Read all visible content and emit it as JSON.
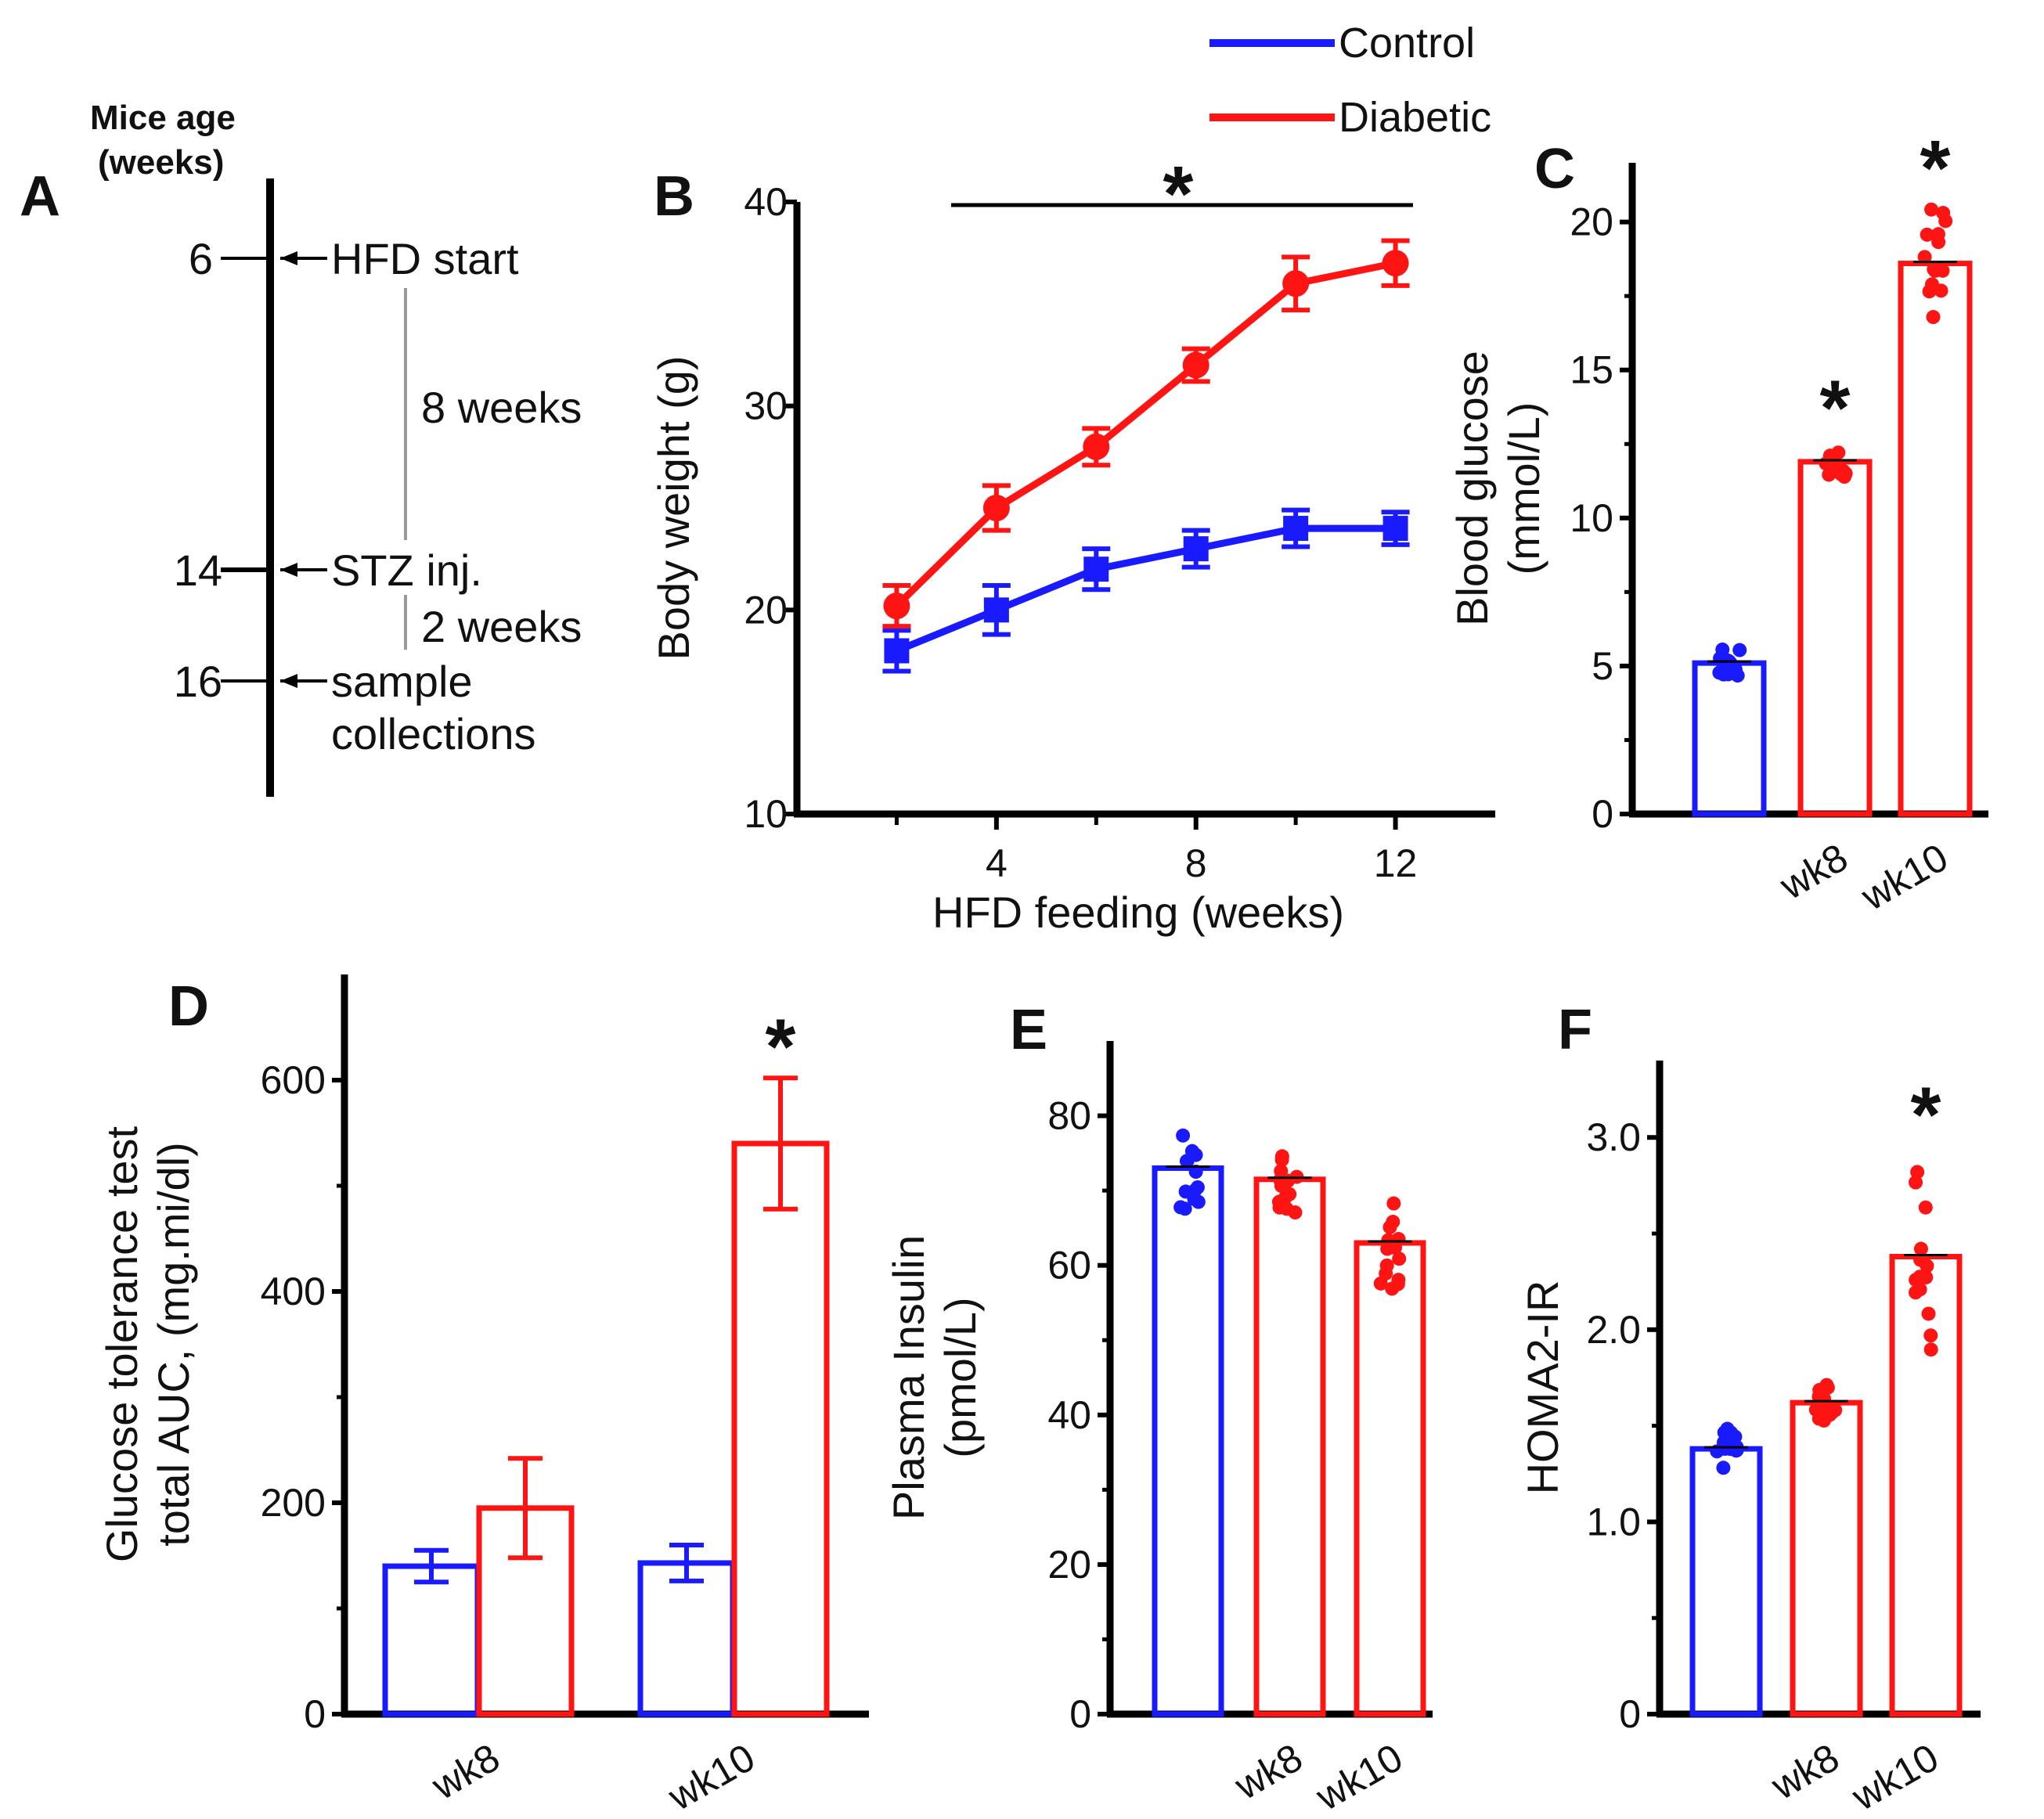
{
  "colors": {
    "control": "#1a1aff",
    "diabetic": "#ff1414",
    "axis": "#000000"
  },
  "legend": {
    "control": "Control",
    "diabetic": "Diabetic"
  },
  "timeline": {
    "label": "A",
    "header_line1": "Mice age",
    "header_line2": "(weeks)",
    "ages": [
      "6",
      "14",
      "16"
    ],
    "events": [
      "HFD start",
      "STZ  inj.",
      "sample",
      "collections"
    ],
    "durations": [
      "8 weeks",
      "2 weeks"
    ]
  },
  "chart_data": [
    {
      "panel": "B",
      "type": "line",
      "xlabel": "HFD feeding (weeks)",
      "ylabel": "Body weight (g)",
      "xlim": [
        0,
        14
      ],
      "ylim": [
        10,
        40
      ],
      "xticks": [
        "4",
        "8",
        "12"
      ],
      "yticks": [
        "10",
        "20",
        "30",
        "40"
      ],
      "x": [
        2,
        4,
        6,
        8,
        10,
        12
      ],
      "series": [
        {
          "name": "Control",
          "values": [
            18,
            20,
            22,
            23,
            24,
            24
          ],
          "err": [
            1.0,
            1.2,
            1.0,
            0.9,
            0.9,
            0.8
          ]
        },
        {
          "name": "Diabetic",
          "values": [
            20.2,
            25,
            28,
            32,
            36,
            37
          ],
          "err": [
            1.0,
            1.1,
            0.9,
            0.8,
            1.3,
            1.1
          ]
        }
      ],
      "annotation": "*"
    },
    {
      "panel": "C",
      "type": "bar",
      "ylabel": "Blood glucose",
      "ylabel2": "(mmol/L)",
      "ylim": [
        0,
        22
      ],
      "yticks": [
        "0",
        "5",
        "10",
        "15",
        "20"
      ],
      "categories": [
        "",
        "wk8",
        "wk10"
      ],
      "values": [
        5.1,
        11.9,
        18.6
      ],
      "groups": [
        "Control",
        "Diabetic",
        "Diabetic"
      ],
      "stars": [
        "",
        "*",
        "*"
      ]
    },
    {
      "panel": "D",
      "type": "bar",
      "ylabel": "Glucose tolerance test",
      "ylabel2": "total AUC, (mg.mi/dl)",
      "ylim": [
        0,
        700
      ],
      "yticks": [
        "0",
        "200",
        "400",
        "600"
      ],
      "categories": [
        "wk8",
        "wk10"
      ],
      "series": [
        {
          "name": "Control",
          "values": [
            140,
            143
          ],
          "err": [
            15,
            17
          ]
        },
        {
          "name": "Diabetic",
          "values": [
            195,
            540
          ],
          "err": [
            47,
            62
          ]
        }
      ],
      "stars": [
        "",
        "*"
      ]
    },
    {
      "panel": "E",
      "type": "bar",
      "ylabel": "Plasma Insulin",
      "ylabel2": "(pmol/L)",
      "ylim": [
        0,
        90
      ],
      "yticks": [
        "0",
        "20",
        "40",
        "60",
        "80"
      ],
      "categories": [
        "",
        "wk8",
        "wk10"
      ],
      "values": [
        73,
        71.5,
        63
      ],
      "groups": [
        "Control",
        "Diabetic",
        "Diabetic"
      ],
      "stars": [
        "",
        "",
        ""
      ]
    },
    {
      "panel": "F",
      "type": "bar",
      "ylabel": "HOMA2-IR",
      "ylim": [
        0,
        3.4
      ],
      "yticks": [
        "0",
        "1.0",
        "2.0",
        "3.0"
      ],
      "categories": [
        "",
        "wk8",
        "wk10"
      ],
      "values": [
        1.38,
        1.62,
        2.38
      ],
      "groups": [
        "Control",
        "Diabetic",
        "Diabetic"
      ],
      "stars": [
        "",
        "",
        "*"
      ]
    }
  ]
}
